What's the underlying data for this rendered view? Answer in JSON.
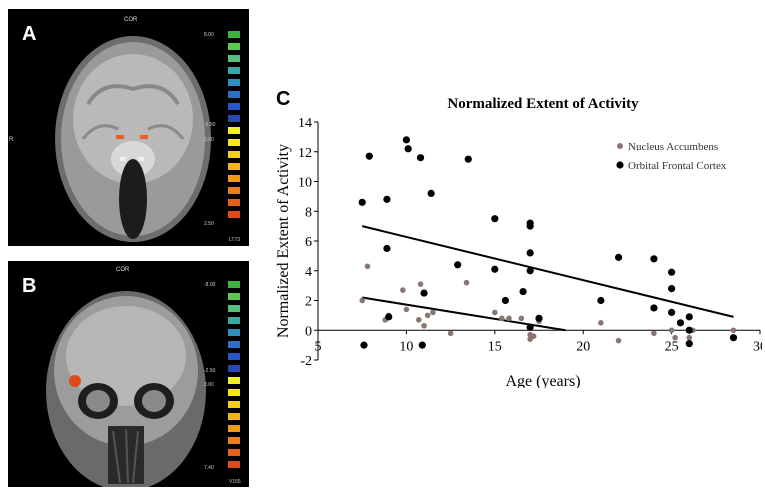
{
  "panels": {
    "a": {
      "letter": "A",
      "view_label": "COR",
      "scale_labels": [
        "8.00",
        "-2.50",
        "3.00",
        "2.50"
      ],
      "bottom_right_label": "LT73",
      "left_marker": "R",
      "scale_colors": [
        "#3fb33f",
        "#5fc650",
        "#57c080",
        "#3aa7a4",
        "#2f8fbe",
        "#2c6fc8",
        "#2a55c8",
        "#2b46b4",
        "#f0f024",
        "#f5e51e",
        "#f5cf1c",
        "#f3b51c",
        "#f09a1c",
        "#ec7d1c",
        "#e6601c",
        "#dd4a1c"
      ]
    },
    "b": {
      "letter": "B",
      "view_label": "COR",
      "scale_labels": [
        "-8.00",
        "-2.50",
        "3.00",
        "7.40"
      ],
      "bottom_right_label": "V165",
      "scale_colors": [
        "#3fb33f",
        "#5fc650",
        "#57c080",
        "#3aa7a4",
        "#2f8fbe",
        "#2c6fc8",
        "#2a55c8",
        "#2b46b4",
        "#f0f024",
        "#f5e51e",
        "#f5cf1c",
        "#f3b51c",
        "#f09a1c",
        "#ec7d1c",
        "#e6601c",
        "#dd4a1c"
      ]
    },
    "c": {
      "letter": "C"
    }
  },
  "chart_data": {
    "type": "scatter",
    "title": "Normalized Extent of Activity",
    "xlabel": "Age (years)",
    "ylabel": "Normalized Extent of Activity",
    "xlim": [
      5,
      30
    ],
    "ylim": [
      -2,
      14
    ],
    "x_ticks": [
      "5",
      "10",
      "15",
      "20",
      "25",
      "30"
    ],
    "y_ticks": [
      "-2",
      "0",
      "2",
      "4",
      "6",
      "8",
      "10",
      "12",
      "14"
    ],
    "legend_position": "top-right",
    "series": [
      {
        "name": "Nucleus Accumbens",
        "color": "#8a7670",
        "points": [
          [
            7.5,
            2.0
          ],
          [
            7.8,
            4.3
          ],
          [
            8.8,
            0.7
          ],
          [
            9.0,
            1.0
          ],
          [
            9.8,
            2.7
          ],
          [
            10.0,
            1.4
          ],
          [
            10.7,
            0.7
          ],
          [
            10.8,
            3.1
          ],
          [
            11.0,
            0.3
          ],
          [
            11.2,
            1.0
          ],
          [
            11.5,
            1.2
          ],
          [
            12.5,
            -0.2
          ],
          [
            13.4,
            3.2
          ],
          [
            15.0,
            1.2
          ],
          [
            15.4,
            0.8
          ],
          [
            15.8,
            0.8
          ],
          [
            16.5,
            0.8
          ],
          [
            17.0,
            -0.3
          ],
          [
            17.0,
            -0.6
          ],
          [
            17.2,
            -0.4
          ],
          [
            17.5,
            0.6
          ],
          [
            21.0,
            0.5
          ],
          [
            22.0,
            -0.7
          ],
          [
            24.0,
            -0.2
          ],
          [
            25.0,
            0.0
          ],
          [
            25.2,
            -0.5
          ],
          [
            26.0,
            -0.5
          ],
          [
            26.2,
            0.0
          ],
          [
            28.5,
            0.0
          ]
        ]
      },
      {
        "name": "Orbital Frontal Cortex",
        "color": "#000000",
        "points": [
          [
            7.5,
            8.6
          ],
          [
            7.6,
            -1.0
          ],
          [
            7.9,
            11.7
          ],
          [
            8.9,
            8.8
          ],
          [
            8.9,
            5.5
          ],
          [
            9.0,
            0.9
          ],
          [
            10.0,
            12.8
          ],
          [
            10.1,
            12.2
          ],
          [
            10.8,
            11.6
          ],
          [
            10.9,
            -1.0
          ],
          [
            11.0,
            2.5
          ],
          [
            11.4,
            9.2
          ],
          [
            12.9,
            4.4
          ],
          [
            13.5,
            11.5
          ],
          [
            15.0,
            7.5
          ],
          [
            15.0,
            4.1
          ],
          [
            15.6,
            2.0
          ],
          [
            16.6,
            2.6
          ],
          [
            17.0,
            7.2
          ],
          [
            17.0,
            7.0
          ],
          [
            17.0,
            5.2
          ],
          [
            17.0,
            4.0
          ],
          [
            17.0,
            0.2
          ],
          [
            17.5,
            0.8
          ],
          [
            21.0,
            2.0
          ],
          [
            22.0,
            4.9
          ],
          [
            24.0,
            4.8
          ],
          [
            24.0,
            1.5
          ],
          [
            25.0,
            3.9
          ],
          [
            25.0,
            2.8
          ],
          [
            25.0,
            1.2
          ],
          [
            25.5,
            0.5
          ],
          [
            26.0,
            0.9
          ],
          [
            26.0,
            0.0
          ],
          [
            26.0,
            -0.9
          ],
          [
            28.5,
            -0.5
          ]
        ]
      }
    ],
    "trend_lines": [
      {
        "series": "Orbital Frontal Cortex",
        "x": [
          7.5,
          28.5
        ],
        "y": [
          7.0,
          0.9
        ]
      },
      {
        "series": "Nucleus Accumbens",
        "x": [
          7.5,
          19.0
        ],
        "y": [
          2.2,
          0.0
        ]
      }
    ]
  }
}
